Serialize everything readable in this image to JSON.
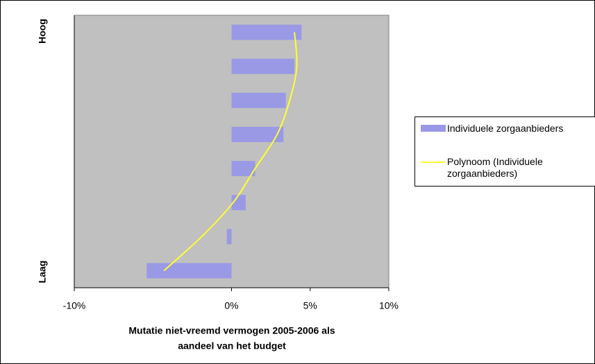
{
  "chart_data": {
    "type": "hbar",
    "y_label_high": "Hoog",
    "y_label_low": "Laag",
    "x_label_lines": [
      "Mutatie niet-vreemd vermogen 2005-2006 als",
      "aandeel van het budget"
    ],
    "categories": [
      null,
      null,
      null,
      null,
      null,
      null,
      null,
      null
    ],
    "series": [
      {
        "name": "Individuele zorgaanbieders",
        "color": "#9999e6",
        "values": [
          -5.4,
          -0.3,
          0.9,
          1.5,
          3.3,
          3.45,
          4.0,
          4.45
        ]
      },
      {
        "name": "Polynoom (Individuele zorgaanbieders)",
        "color": "#ffff33",
        "line": true,
        "values": [
          -4.3,
          -1.9,
          0.1,
          1.5,
          2.9,
          3.7,
          4.15,
          4.0
        ]
      }
    ],
    "xlim": [
      -10,
      10
    ],
    "xticks": [
      {
        "value": -10,
        "label": "-10%"
      },
      {
        "value": 0,
        "label": "0%"
      },
      {
        "value": 5,
        "label": "5%"
      },
      {
        "value": 10,
        "label": "10%"
      }
    ],
    "plot_background": "#c0c0c0"
  }
}
